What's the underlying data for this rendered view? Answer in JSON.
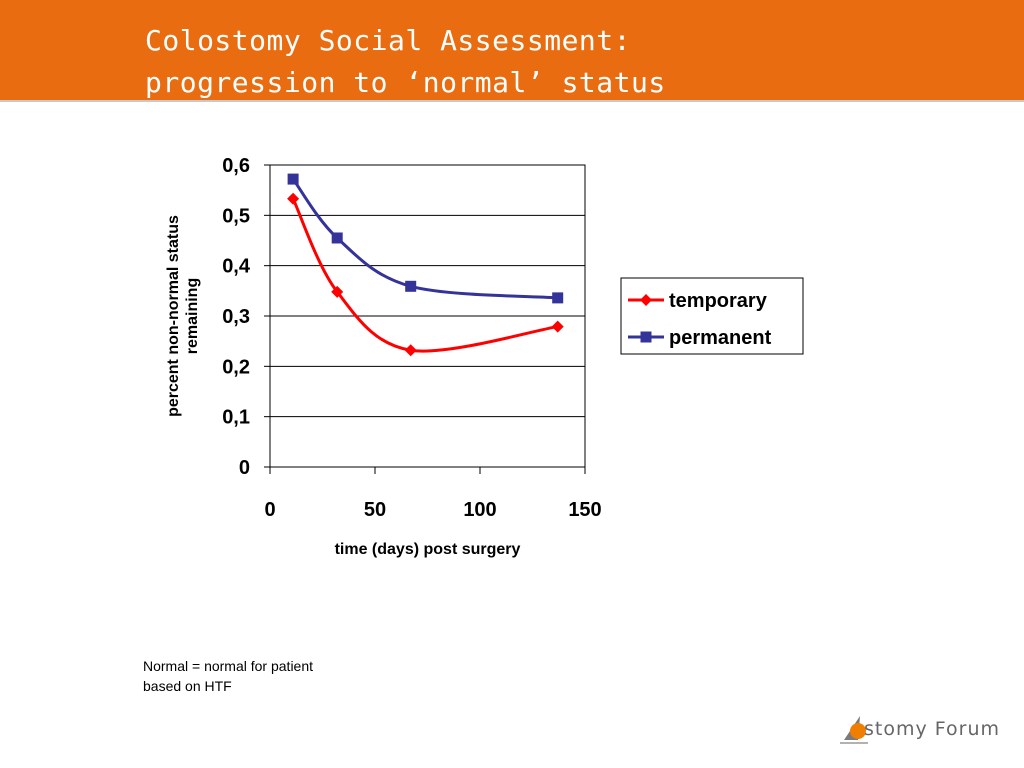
{
  "slide": {
    "title_lines": [
      "Colostomy Social Assessment:",
      "progression to ‘normal’ status"
    ],
    "footnote_lines": [
      "Normal = normal for patient",
      "based on HTF"
    ],
    "logo_text": "stomy Forum"
  },
  "colors": {
    "header": "#e96d10",
    "temporary": "#ff0000",
    "permanent": "#333399",
    "logo_accent": "#f07e00"
  },
  "chart_data": {
    "type": "line",
    "title": "",
    "xlabel": "time (days) post surgery",
    "ylabel_lines": [
      "percent non-normal status",
      "remaining"
    ],
    "xlim": [
      0,
      150
    ],
    "ylim": [
      0,
      0.6
    ],
    "x_ticks": [
      0,
      50,
      100,
      150
    ],
    "x_tick_labels": [
      "0",
      "50",
      "100",
      "150"
    ],
    "y_ticks": [
      0,
      0.1,
      0.2,
      0.3,
      0.4,
      0.5,
      0.6
    ],
    "y_tick_labels": [
      "0",
      "0,1",
      "0,2",
      "0,3",
      "0,4",
      "0,5",
      "0,6"
    ],
    "grid": "horizontal",
    "legend": "right",
    "series": [
      {
        "name": "temporary",
        "marker": "diamond",
        "color": "#ff0000",
        "x": [
          11,
          32,
          67,
          137
        ],
        "values": [
          0.533,
          0.348,
          0.232,
          0.279
        ]
      },
      {
        "name": "permanent",
        "marker": "square",
        "color": "#333399",
        "x": [
          11,
          32,
          67,
          137
        ],
        "values": [
          0.572,
          0.455,
          0.359,
          0.336
        ]
      }
    ]
  }
}
